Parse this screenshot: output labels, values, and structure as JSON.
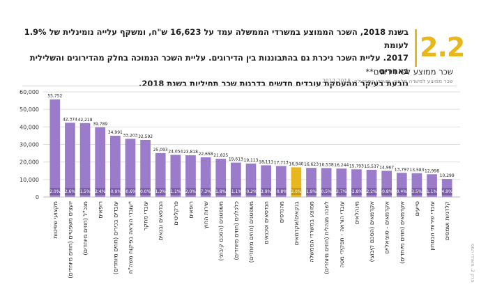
{
  "header": {
    "section_number": "2.2",
    "intro_lines": [
      "בשנת 2018, השכר הממוצע במשרדי הממשלה עמד על 16,623 ש\"ח, ומשקף עלייה נומינלית של 1.9% לעומת",
      "2017. עליית השכר ניכרת גם בהתבוננות בין הדירוגים. עליית השכר הנמוכה בחלק מהדירוגים והשלילית באחרים",
      "נובעת בעיקר מהעסקת עובדים חדשים בדרגות שכר תחיליות בשנת 2018."
    ]
  },
  "side_caption": "פרק 2, משרדי הממ",
  "colors": {
    "bar": "#9b7ccb",
    "bar_highlight": "#e7b81e",
    "pct_band": "#7a5fa6",
    "pct_band_highlight": "#c79b10",
    "grid": "#dddddd",
    "accent": "#e7b81e"
  },
  "chart_data": {
    "type": "bar",
    "title": "שכר ממוצע לפי דירוגים**",
    "subtitle": "שכר ממוצע למשרה מלאה, משרדי הממשלה, 2017-2018",
    "ylim": [
      0,
      60000
    ],
    "yticks": [
      "0",
      "10,000",
      "20,000",
      "30,000",
      "40,000",
      "50,000",
      "60,000"
    ],
    "ytick_values": [
      0,
      10000,
      20000,
      30000,
      40000,
      50000,
      60000
    ],
    "grid": true,
    "legend": "none",
    "highlight_index": 16,
    "categories": [
      "מקצועי שפיטות",
      "יועצים משפטיים (חוזים מיוחדים)",
      "מנכ\"ל (חוזים מיוחדים)",
      "רופאים",
      "עובדים בכירים (חוזים מיוחדים)",
      "עובדי הוראה בפיקוח משה\"ח*",
      "עובדי מחקר",
      "הנדסאים ובנאים",
      "פרקליטים",
      "רופאים",
      "שירות החוץ",
      "משפטנים (הסכם קיבוצי)",
      "כלכלנים (חוזים מיוחדים)",
      "משפטנים (חוזים מיוחדים)",
      "הנדסאים וטכנאים",
      "מהנדסים",
      "בנקאים/אקדמאים",
      "ממוצע במשרדי הממשלה",
      "לשכה מנהלית (חוזים מיוחדים)",
      "עובדי הוראה - תפקידי מטה",
      "מינהלאים",
      "אקדמאים (הסכם קיבוצי)",
      "אקדמאים - סוציאליים",
      "אקדמאים (חוזים מיוחדים)",
      "סייעים",
      "עובדי שירותי הבטחון",
      "קלדניות ושמפים"
    ],
    "values": [
      55752,
      42374,
      42218,
      39789,
      34991,
      33203,
      32592,
      25093,
      24054,
      23818,
      22658,
      21825,
      19613,
      19113,
      18111,
      17713,
      16940,
      16623,
      16538,
      16244,
      15793,
      15537,
      14967,
      13797,
      13583,
      12998,
      10299
    ],
    "value_labels": [
      "55,752",
      "42,374",
      "42,218",
      "39,789",
      "34,991",
      "33,203",
      "32,592",
      "25,093",
      "24,054",
      "23,818",
      "22,658",
      "21,825",
      "19,613",
      "19,113",
      "18,111",
      "17,713",
      "16,940",
      "16,623",
      "16,538",
      "16,244",
      "15,793",
      "15,537",
      "14,967",
      "13,797",
      "13,583",
      "12,998",
      "10,299"
    ],
    "pct_change": [
      "2.0%",
      "2.6%",
      "1.5%",
      "2.4%",
      "-0.9%",
      "-0.6%",
      "0.0%",
      "1.3%",
      "1.1%",
      "2.0%",
      "7.3%",
      "1.8%",
      "-1.1%",
      "-0.2%",
      "3.9%",
      "-0.8%",
      "3.0%",
      "1.9%",
      "0.5%",
      "2.7%",
      "-2.8%",
      "2.2%",
      "-0.8%",
      "0.4%",
      "3.5%",
      "1.1%",
      "4.9%"
    ]
  }
}
